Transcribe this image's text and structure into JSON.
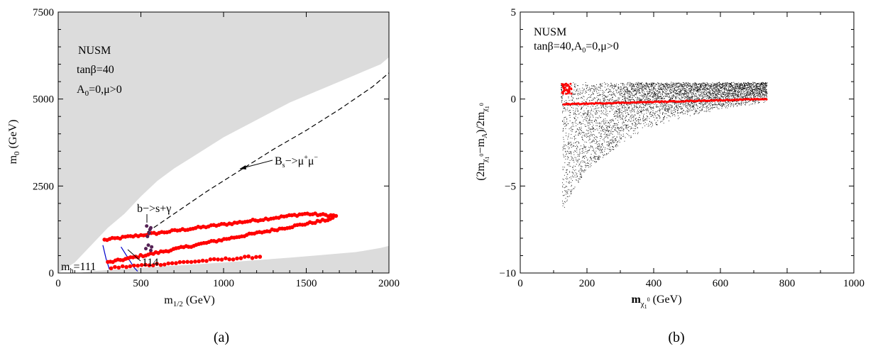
{
  "chart_data": [
    {
      "type": "scatter",
      "panel_label": "(a)",
      "xlabel": "m",
      "xlabel_sub": "1/2",
      "xlabel_unit": " (GeV)",
      "ylabel": "m",
      "ylabel_sub": "0",
      "ylabel_unit": " (GeV)",
      "xlim": [
        0,
        2000
      ],
      "ylim": [
        0,
        7500
      ],
      "x_ticks": [
        "0",
        "500",
        "1000",
        "1500",
        "2000"
      ],
      "y_ticks": [
        "0",
        "2500",
        "5000",
        "7500"
      ],
      "grid": false,
      "annotations": {
        "model": "NUSM",
        "tanb": "tanβ=40",
        "a0_pre": "A",
        "a0_sub": "0",
        "a0_post": "=0,μ>0",
        "bs_main": "B",
        "bs_sub": "s",
        "bs_mid": "−>μ",
        "bs_sup1": "+",
        "bs_mu2": "μ",
        "bs_sup2": "−",
        "bsg": "b−>s+γ",
        "mh_pre": "m",
        "mh_sub": "h",
        "mh_val": "=111",
        "mh2_val": "114"
      },
      "colors": {
        "excluded": "#dcdcdc",
        "points": "#ff0000",
        "mh_lines": "#0000cc",
        "bsg_points": "#552255"
      },
      "excluded_upper_boundary": [
        [
          100,
          300
        ],
        [
          200,
          800
        ],
        [
          300,
          1300
        ],
        [
          400,
          1700
        ],
        [
          500,
          2200
        ],
        [
          600,
          2650
        ],
        [
          700,
          3000
        ],
        [
          800,
          3300
        ],
        [
          900,
          3600
        ],
        [
          1000,
          3900
        ],
        [
          1200,
          4400
        ],
        [
          1400,
          4900
        ],
        [
          1600,
          5300
        ],
        [
          1800,
          5700
        ],
        [
          1950,
          6000
        ],
        [
          2000,
          6200
        ]
      ],
      "excluded_lower_boundary": [
        [
          120,
          0
        ],
        [
          200,
          50
        ],
        [
          400,
          120
        ],
        [
          600,
          180
        ],
        [
          800,
          240
        ],
        [
          1000,
          300
        ],
        [
          1200,
          370
        ],
        [
          1400,
          440
        ],
        [
          1600,
          520
        ],
        [
          1800,
          600
        ],
        [
          1950,
          720
        ],
        [
          2000,
          780
        ]
      ],
      "bs_mumu_curve": [
        [
          500,
          1050
        ],
        [
          700,
          1700
        ],
        [
          900,
          2350
        ],
        [
          1100,
          2950
        ],
        [
          1300,
          3550
        ],
        [
          1500,
          4100
        ],
        [
          1700,
          4700
        ],
        [
          1900,
          5350
        ],
        [
          2000,
          5750
        ]
      ],
      "mh111_curve": [
        [
          270,
          800
        ],
        [
          280,
          600
        ],
        [
          290,
          400
        ],
        [
          300,
          250
        ],
        [
          310,
          100
        ]
      ],
      "mh114_curve": [
        [
          380,
          750
        ],
        [
          400,
          600
        ],
        [
          420,
          450
        ],
        [
          440,
          300
        ],
        [
          460,
          150
        ],
        [
          480,
          50
        ]
      ],
      "bsg_points": [
        [
          540,
          1050
        ],
        [
          550,
          1150
        ],
        [
          555,
          1250
        ],
        [
          560,
          1300
        ],
        [
          545,
          800
        ],
        [
          530,
          700
        ],
        [
          560,
          650
        ],
        [
          535,
          1350
        ],
        [
          565,
          750
        ]
      ],
      "series": [
        {
          "type": "scatter",
          "x_range": [
            280,
            1680
          ],
          "shape": "upper-band",
          "count": 90
        },
        {
          "type": "scatter",
          "x_range": [
            300,
            1660
          ],
          "shape": "middle-band",
          "count": 90
        },
        {
          "type": "scatter",
          "x_range": [
            320,
            1220
          ],
          "shape": "lower-band",
          "count": 40
        }
      ]
    },
    {
      "type": "scatter",
      "panel_label": "(b)",
      "xlabel": "m",
      "xlabel_sub": "χ",
      "xlabel_subsub": "1",
      "xlabel_sup": "0",
      "xlabel_unit": " (GeV)",
      "ylabel_text": "(2m",
      "ylabel_sub1": "χ",
      "ylabel_subsub1": "1",
      "ylabel_sup1": "0",
      "ylabel_mid": "−m",
      "ylabel_sub2": "A",
      "ylabel_post": ")/2m",
      "ylabel_sub3": "χ",
      "ylabel_subsub3": "1",
      "ylabel_sup3": "0",
      "xlim": [
        0,
        1000
      ],
      "ylim": [
        -10,
        5
      ],
      "x_ticks": [
        "0",
        "200",
        "400",
        "600",
        "800",
        "1000"
      ],
      "y_ticks": [
        "−10",
        "−5",
        "0",
        "5"
      ],
      "grid": false,
      "annotations": {
        "model": "NUSM",
        "params_pre": "tanβ=40,A",
        "params_sub": "0",
        "params_post": "=0,μ>0"
      },
      "colors": {
        "points": "#000000",
        "highlight": "#ff0000"
      },
      "series": [
        {
          "type": "scatter",
          "x_range": [
            120,
            740
          ],
          "y_lower_envelope": [
            [
              125,
              -6.5
            ],
            [
              150,
              -5.5
            ],
            [
              200,
              -4
            ],
            [
              300,
              -2.6
            ],
            [
              400,
              -1.6
            ],
            [
              500,
              -1.0
            ],
            [
              600,
              -0.6
            ],
            [
              700,
              -0.3
            ],
            [
              740,
              -0.2
            ]
          ],
          "y_upper": 1.0,
          "color": "black"
        },
        {
          "type": "line",
          "x_range": [
            130,
            740
          ],
          "y_start": -0.3,
          "y_end": 0.0,
          "color": "red"
        },
        {
          "type": "scatter",
          "x_range": [
            125,
            160
          ],
          "y_range": [
            0.3,
            0.9
          ],
          "color": "red"
        }
      ]
    }
  ]
}
